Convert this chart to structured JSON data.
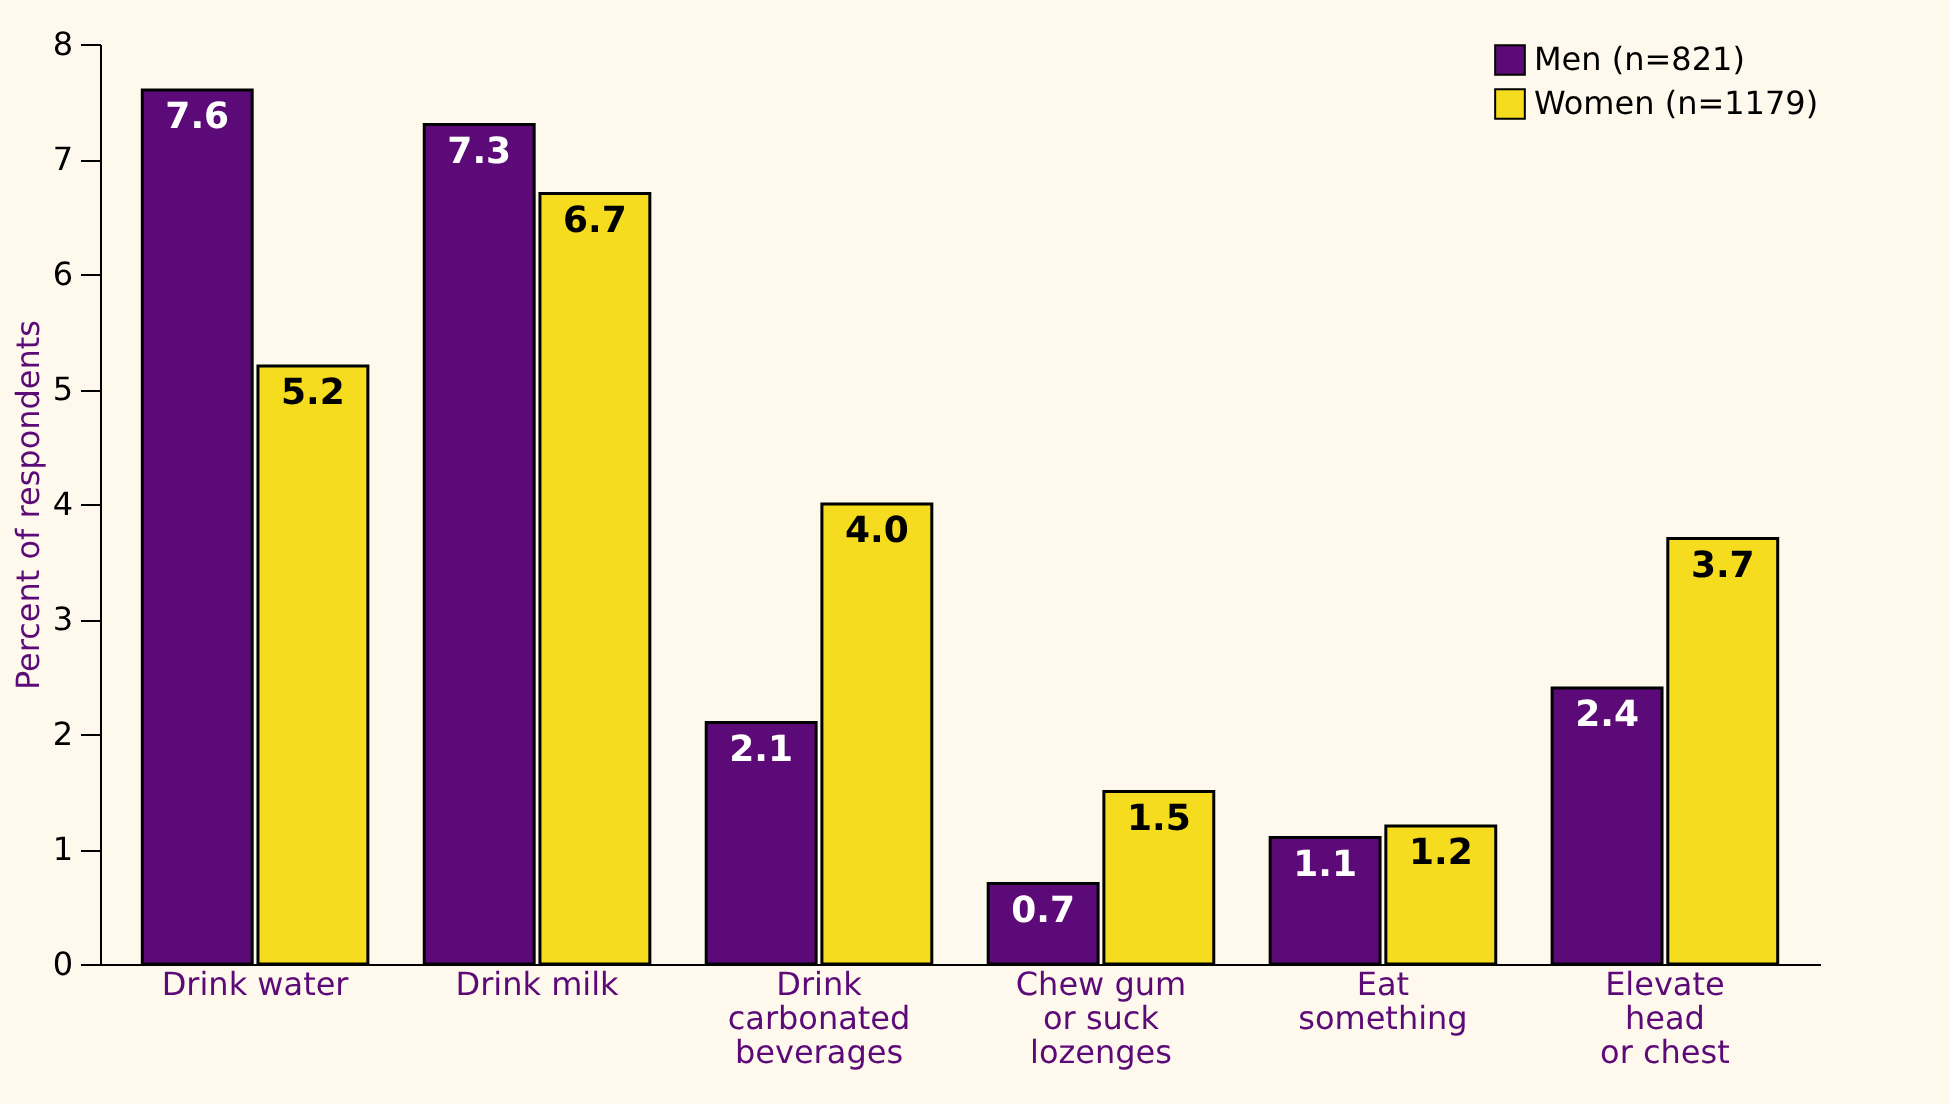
{
  "chart_data": {
    "type": "bar",
    "ylabel": "Percent of respondents",
    "categories": [
      "Drink water",
      "Drink milk",
      "Drink\ncarbonated\nbeverages",
      "Chew gum\nor suck\nlozenges",
      "Eat\nsomething",
      "Elevate\nhead\nor chest"
    ],
    "series": [
      {
        "name": "Men (n=821)",
        "color": "#5c0a78",
        "values": [
          7.6,
          7.3,
          2.1,
          0.7,
          1.1,
          2.4
        ],
        "value_labels": [
          "7.6",
          "7.3",
          "2.1",
          "0.7",
          "1.1",
          "2.4"
        ]
      },
      {
        "name": "Women (n=1179)",
        "color": "#f5dc1e",
        "values": [
          5.2,
          6.7,
          4.0,
          1.5,
          1.2,
          3.7
        ],
        "value_labels": [
          "5.2",
          "6.7",
          "4.0",
          "1.5",
          "1.2",
          "3.7"
        ]
      }
    ],
    "ylim": [
      0,
      8
    ],
    "yticks": [
      0,
      1,
      2,
      3,
      4,
      5,
      6,
      7,
      8
    ],
    "grid": false,
    "legend": "top right"
  }
}
